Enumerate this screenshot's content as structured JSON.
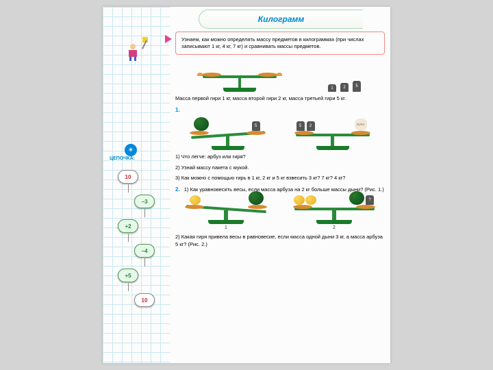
{
  "title": "Килограмм",
  "intro": "Узнаем, как можно определять массу предметов в килограммах (при числах записывают 1 кг, 4 кг, 7 кг) и сравнивать массы предметов.",
  "weights_intro_labels": {
    "w1": "1",
    "w2": "2",
    "w3": "5"
  },
  "mass_text": "Масса первой гири 1 кг, масса второй гири 2 кг, масса третьей гири 5 кг.",
  "task1": {
    "num": "1.",
    "right_weights": {
      "a": "5",
      "b": "2"
    },
    "sack": "мука",
    "q1": "1) Что легче: арбуз или гиря?",
    "q2": "2) Узнай массу пакета с мукой.",
    "q3": "3) Как можно с помощью гирь в 1 кг, 2 кг и 5 кг взвесить 3 кг? 7 кг? 4 кг?"
  },
  "task2": {
    "num": "2.",
    "p1": "1) Как уравновесить весы, если масса арбуза на 2 кг больше массы дыни? (Рис. 1.)",
    "fig1": "1",
    "fig2": "2",
    "p2": "2) Какая гиря привела весы в равновесие, если масса одной дыни 3 кг, а масса арбуза 5 кг? (Рис. 2.)"
  },
  "sidebar": {
    "badge": "✶",
    "label": "ЦЕПОЧКА:",
    "chain": [
      {
        "v": "10",
        "cls": "cn-red",
        "off": "off-l"
      },
      {
        "v": "−3",
        "cls": "cn-green",
        "off": "off-r"
      },
      {
        "v": "+2",
        "cls": "cn-green",
        "off": "off-l"
      },
      {
        "v": "−4",
        "cls": "cn-green",
        "off": "off-r"
      },
      {
        "v": "+5",
        "cls": "cn-green",
        "off": "off-l"
      },
      {
        "v": "10",
        "cls": "cn-red",
        "off": "off-r"
      }
    ]
  },
  "colors": {
    "title": "#0088cc",
    "accent": "#e84090",
    "green": "#2a8a3a"
  }
}
